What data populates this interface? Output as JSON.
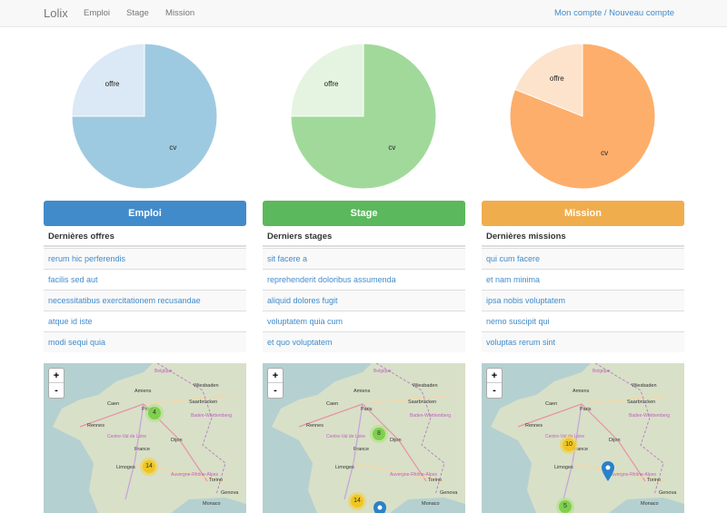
{
  "navbar": {
    "brand": "Lolix",
    "links": [
      "Emploi",
      "Stage",
      "Mission"
    ],
    "account": "Mon compte",
    "separator": " / ",
    "new_account": "Nouveau compte"
  },
  "colors": {
    "emploi": "#428bca",
    "stage": "#5cb85c",
    "mission": "#f0ad4e"
  },
  "columns": [
    {
      "button_label": "Emploi",
      "list_title": "Dernières offres",
      "items": [
        "rerum hic perferendis",
        "facilis sed aut",
        "necessitatibus exercitationem recusandae",
        "atque id iste",
        "modi sequi quia"
      ],
      "pie": {
        "labels": [
          "offre",
          "cv"
        ],
        "colors": [
          "#dbe8f5",
          "#9ecae1"
        ]
      },
      "clusters": [
        {
          "label": "4",
          "color": "green"
        },
        {
          "label": "14",
          "color": "yellow"
        }
      ]
    },
    {
      "button_label": "Stage",
      "list_title": "Derniers stages",
      "items": [
        "sit facere a",
        "reprehenderit doloribus assumenda",
        "aliquid dolores fugit",
        "voluptatem quia cum",
        "et quo voluptatem"
      ],
      "pie": {
        "labels": [
          "offre",
          "cv"
        ],
        "colors": [
          "#e4f4e0",
          "#a1d99b"
        ]
      },
      "clusters": [
        {
          "label": "8",
          "color": "green"
        },
        {
          "label": "14",
          "color": "yellow"
        }
      ]
    },
    {
      "button_label": "Mission",
      "list_title": "Dernières missions",
      "items": [
        "qui cum facere",
        "et nam minima",
        "ipsa nobis voluptatem",
        "nemo suscipit qui",
        "voluptas rerum sint"
      ],
      "pie": {
        "labels": [
          "offre",
          "cv"
        ],
        "colors": [
          "#fde3cc",
          "#fdae6b"
        ]
      },
      "clusters": [
        {
          "label": "10",
          "color": "yellow"
        },
        {
          "label": "5",
          "color": "green"
        }
      ]
    }
  ],
  "chart_data": [
    {
      "type": "pie",
      "labels": [
        "offre",
        "cv"
      ],
      "values": [
        25,
        75
      ]
    },
    {
      "type": "pie",
      "labels": [
        "offre",
        "cv"
      ],
      "values": [
        25,
        75
      ]
    },
    {
      "type": "pie",
      "labels": [
        "offre",
        "cv"
      ],
      "values": [
        19,
        81
      ]
    }
  ],
  "map": {
    "zoom_in": "+",
    "zoom_out": "-",
    "cities": [
      "Belgique",
      "Amiens",
      "Wiesbaden",
      "Caen",
      "Saarbrücken",
      "Paris",
      "Rennes",
      "Baden-Württemberg",
      "Centre-Val de Loire",
      "Dijon",
      "France",
      "Limoges",
      "Auvergne-Rhône-Alpes",
      "Torino",
      "Genova",
      "Monaco"
    ]
  }
}
